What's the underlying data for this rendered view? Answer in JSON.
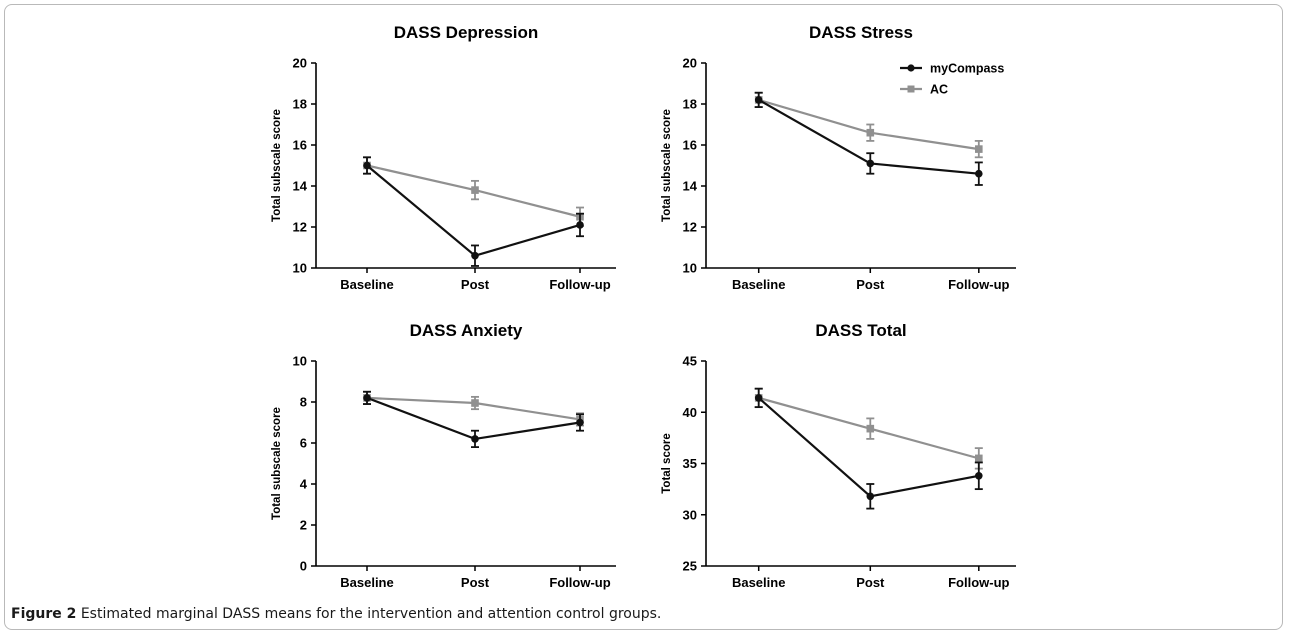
{
  "caption": {
    "label": "Figure 2",
    "text": "Estimated marginal DASS means for the intervention and attention control groups."
  },
  "colors": {
    "mycompass": "#111111",
    "ac": "#909090"
  },
  "chart_data": [
    {
      "type": "line",
      "title": "DASS Depression",
      "ylabel": "Total subscale score",
      "categories": [
        "Baseline",
        "Post",
        "Follow-up"
      ],
      "ylim": [
        10,
        20
      ],
      "yticks": [
        10,
        12,
        14,
        16,
        18,
        20
      ],
      "series": [
        {
          "name": "myCompass",
          "values": [
            15.0,
            10.6,
            12.1
          ],
          "errors": [
            0.4,
            0.5,
            0.55
          ]
        },
        {
          "name": "AC",
          "values": [
            15.0,
            13.8,
            12.5
          ],
          "errors": [
            0.4,
            0.45,
            0.45
          ]
        }
      ]
    },
    {
      "type": "line",
      "title": "DASS Stress",
      "ylabel": "Total subscale score",
      "categories": [
        "Baseline",
        "Post",
        "Follow-up"
      ],
      "ylim": [
        10,
        20
      ],
      "yticks": [
        10,
        12,
        14,
        16,
        18,
        20
      ],
      "legend": "top-right",
      "series": [
        {
          "name": "myCompass",
          "values": [
            18.2,
            15.1,
            14.6
          ],
          "errors": [
            0.35,
            0.5,
            0.55
          ]
        },
        {
          "name": "AC",
          "values": [
            18.2,
            16.6,
            15.8
          ],
          "errors": [
            0.35,
            0.4,
            0.4
          ]
        }
      ]
    },
    {
      "type": "line",
      "title": "DASS Anxiety",
      "ylabel": "Total subscale score",
      "categories": [
        "Baseline",
        "Post",
        "Follow-up"
      ],
      "ylim": [
        0,
        10
      ],
      "yticks": [
        0,
        2,
        4,
        6,
        8,
        10
      ],
      "series": [
        {
          "name": "myCompass",
          "values": [
            8.2,
            6.2,
            7.0
          ],
          "errors": [
            0.3,
            0.4,
            0.4
          ]
        },
        {
          "name": "AC",
          "values": [
            8.2,
            7.95,
            7.15
          ],
          "errors": [
            0.3,
            0.3,
            0.3
          ]
        }
      ]
    },
    {
      "type": "line",
      "title": "DASS Total",
      "ylabel": "Total score",
      "categories": [
        "Baseline",
        "Post",
        "Follow-up"
      ],
      "ylim": [
        25,
        45
      ],
      "yticks": [
        25,
        30,
        35,
        40,
        45
      ],
      "series": [
        {
          "name": "myCompass",
          "values": [
            41.4,
            31.8,
            33.8
          ],
          "errors": [
            0.9,
            1.2,
            1.3
          ]
        },
        {
          "name": "AC",
          "values": [
            41.4,
            38.4,
            35.5
          ],
          "errors": [
            0.9,
            1.0,
            1.0
          ]
        }
      ]
    }
  ]
}
